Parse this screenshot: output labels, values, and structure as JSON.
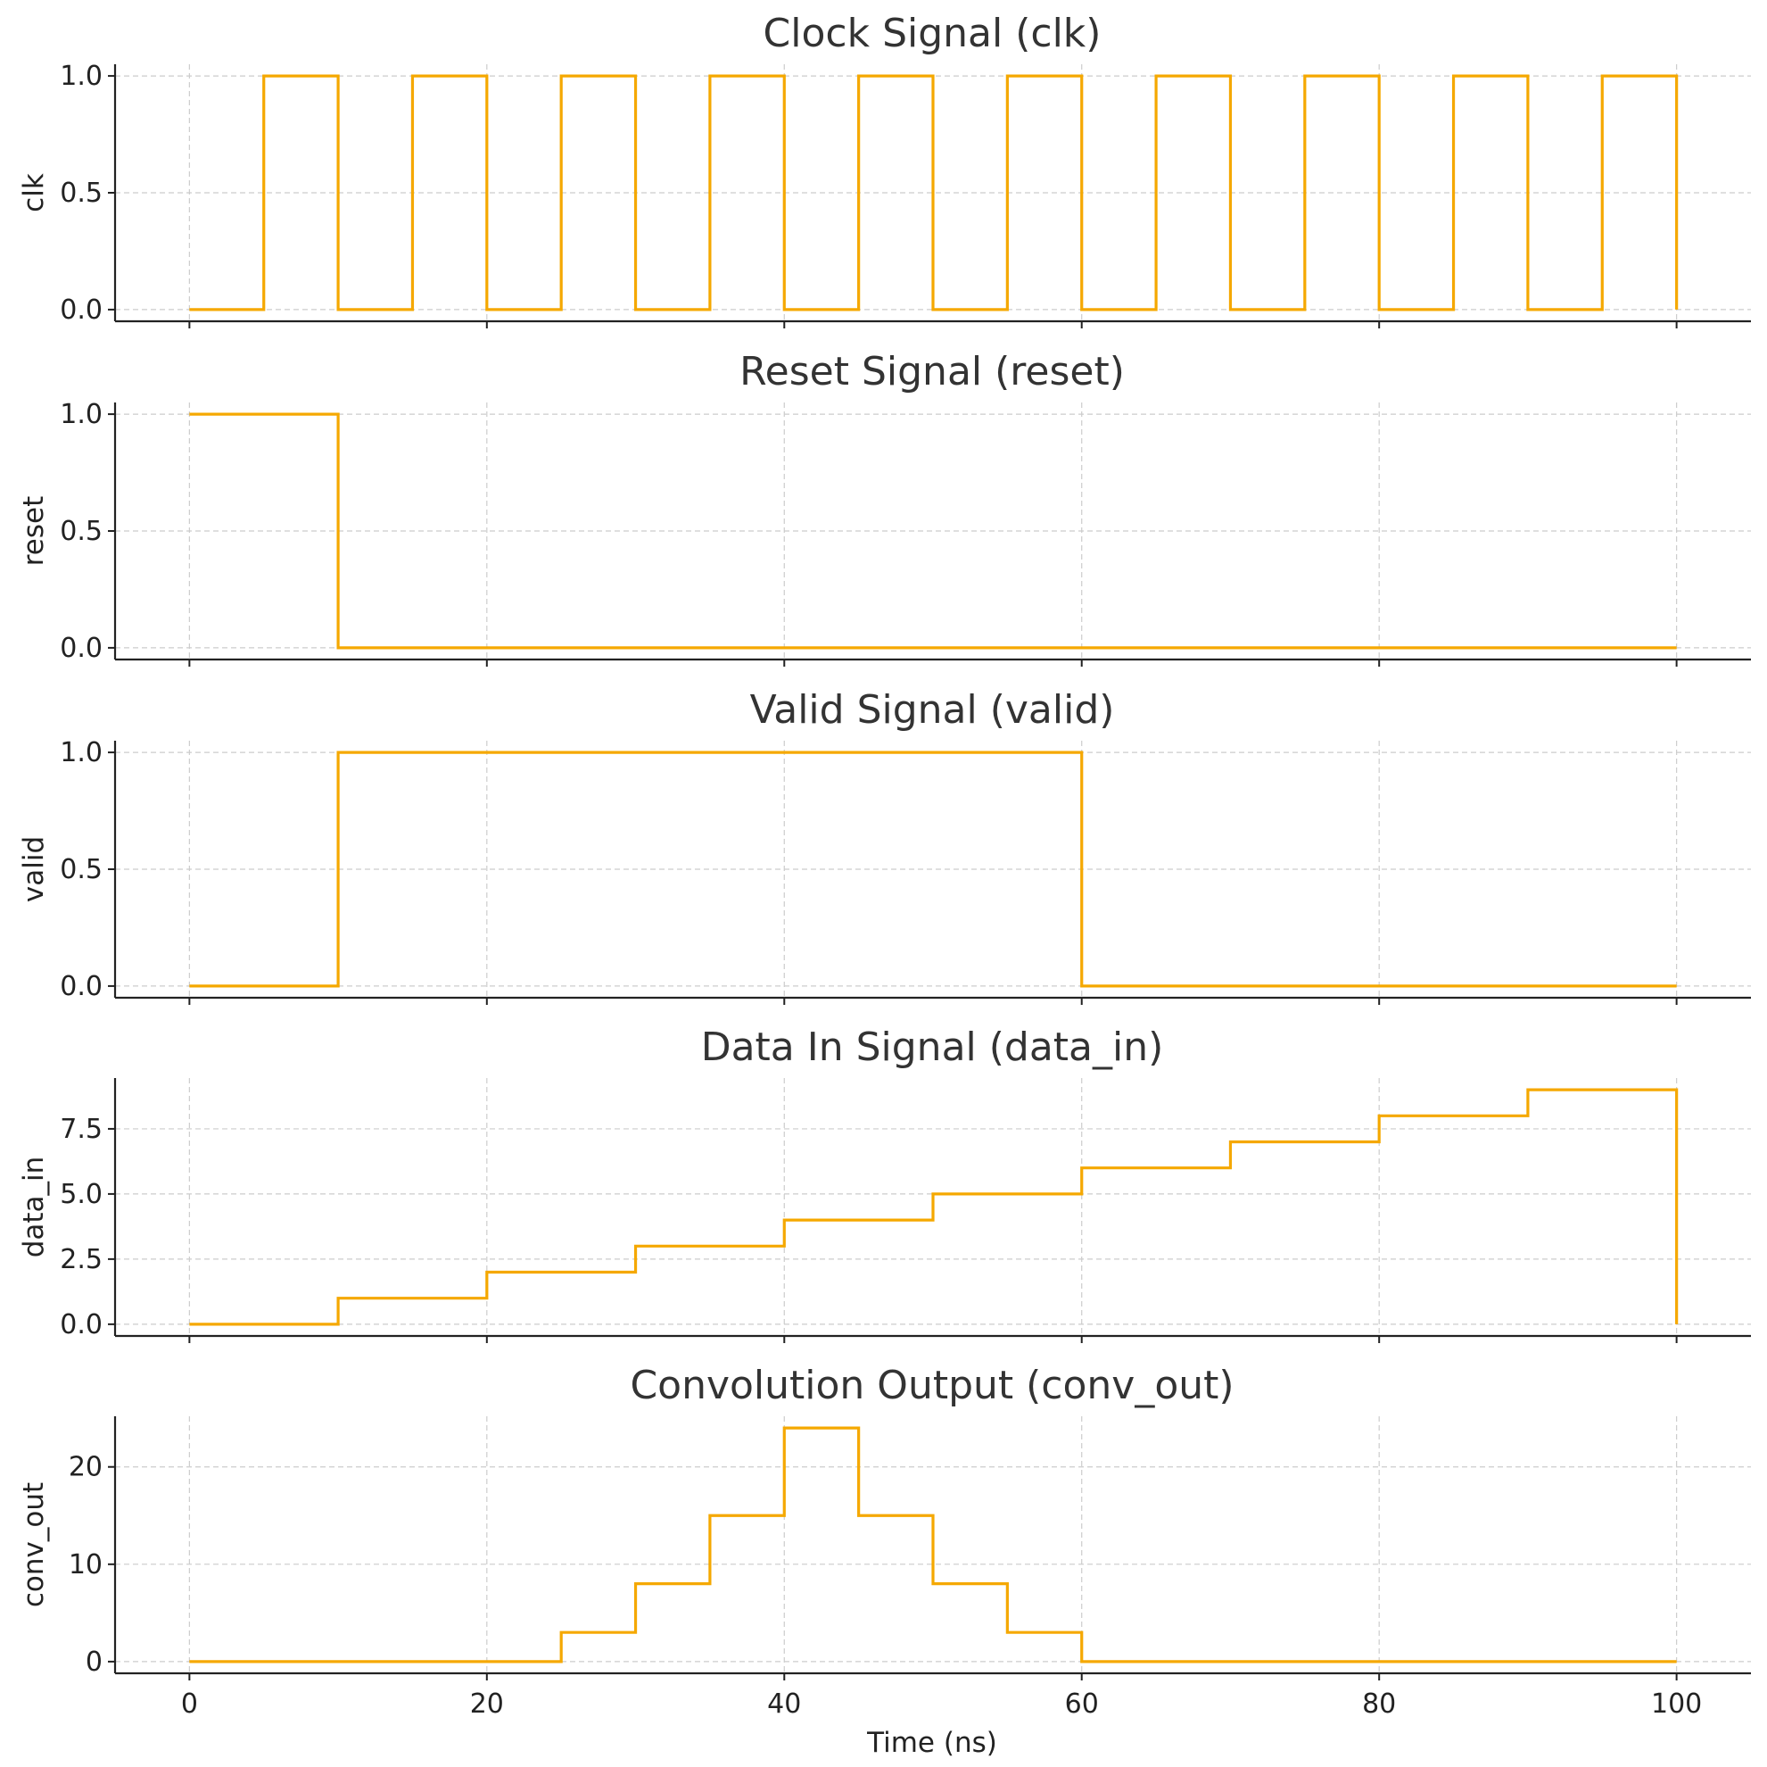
{
  "colors": {
    "signal": "#F5A800"
  },
  "shared_x": {
    "label": "Time (ns)",
    "ticks": [
      0,
      20,
      40,
      60,
      80,
      100
    ],
    "xlim": [
      -5,
      105
    ]
  },
  "chart_data": [
    {
      "type": "line",
      "step": "post",
      "title": "Clock Signal (clk)",
      "ylabel": "clk",
      "ylim": [
        -0.05,
        1.05
      ],
      "yticks": [
        "0.0",
        "0.5",
        "1.0"
      ],
      "ytick_values": [
        0,
        0.5,
        1
      ],
      "grid": true,
      "x": [
        0,
        5,
        10,
        15,
        20,
        25,
        30,
        35,
        40,
        45,
        50,
        55,
        60,
        65,
        70,
        75,
        80,
        85,
        90,
        95,
        100
      ],
      "y": [
        0,
        1,
        0,
        1,
        0,
        1,
        0,
        1,
        0,
        1,
        0,
        1,
        0,
        1,
        0,
        1,
        0,
        1,
        0,
        1,
        0
      ]
    },
    {
      "type": "line",
      "step": "post",
      "title": "Reset Signal (reset)",
      "ylabel": "reset",
      "ylim": [
        -0.05,
        1.05
      ],
      "yticks": [
        "0.0",
        "0.5",
        "1.0"
      ],
      "ytick_values": [
        0,
        0.5,
        1
      ],
      "grid": true,
      "x": [
        0,
        10,
        100
      ],
      "y": [
        1,
        0,
        0
      ]
    },
    {
      "type": "line",
      "step": "post",
      "title": "Valid Signal (valid)",
      "ylabel": "valid",
      "ylim": [
        -0.05,
        1.05
      ],
      "yticks": [
        "0.0",
        "0.5",
        "1.0"
      ],
      "ytick_values": [
        0,
        0.5,
        1
      ],
      "grid": true,
      "x": [
        0,
        10,
        60,
        100
      ],
      "y": [
        0,
        1,
        0,
        0
      ]
    },
    {
      "type": "line",
      "step": "post",
      "title": "Data In Signal (data_in)",
      "ylabel": "data_in",
      "ylim": [
        -0.45,
        9.45
      ],
      "yticks": [
        "0.0",
        "2.5",
        "5.0",
        "7.5"
      ],
      "ytick_values": [
        0,
        2.5,
        5,
        7.5
      ],
      "grid": true,
      "x": [
        0,
        10,
        20,
        30,
        40,
        50,
        60,
        70,
        80,
        90,
        100
      ],
      "y": [
        0,
        1,
        2,
        3,
        4,
        5,
        6,
        7,
        8,
        9,
        0
      ]
    },
    {
      "type": "line",
      "step": "post",
      "title": "Convolution Output (conv_out)",
      "ylabel": "conv_out",
      "ylim": [
        -1.2,
        25.2
      ],
      "yticks": [
        "0",
        "10",
        "20"
      ],
      "ytick_values": [
        0,
        10,
        20
      ],
      "grid": true,
      "x": [
        0,
        25,
        30,
        35,
        40,
        45,
        50,
        55,
        60,
        100
      ],
      "y": [
        0,
        3,
        8,
        15,
        24,
        15,
        8,
        3,
        0,
        0
      ]
    }
  ]
}
